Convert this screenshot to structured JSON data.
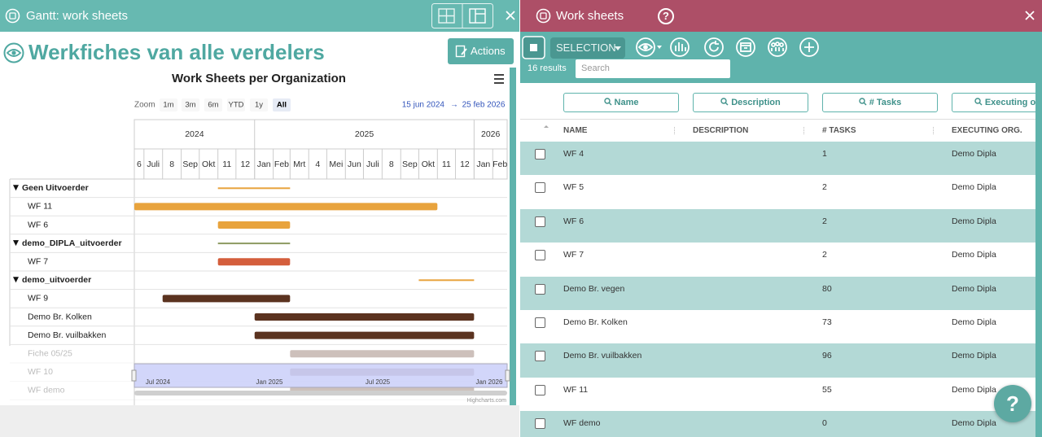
{
  "gantt_panel": {
    "title": "Gantt: work sheets",
    "heading": "Werkfiches van alle verdelers",
    "actions_button": "Actions"
  },
  "gantt": {
    "title": "Work Sheets per Organization",
    "zoom_label": "Zoom",
    "zoom_buttons": [
      "1m",
      "3m",
      "6m",
      "YTD",
      "1y",
      "All"
    ],
    "selected_zoom": 5,
    "range_from": "15 jun 2024",
    "range_separator": "→",
    "range_to": "25 feb 2026",
    "xlim": [
      "2024-06-15",
      "2026-02-25"
    ],
    "years": [
      "2024",
      "2025",
      "2026"
    ],
    "months": [
      "6",
      "Juli",
      "8",
      "Sep",
      "Okt",
      "11",
      "12",
      "Jan",
      "Feb",
      "Mrt",
      "4",
      "Mei",
      "Jun",
      "Juli",
      "8",
      "Sep",
      "Okt",
      "11",
      "12",
      "Jan",
      "Feb"
    ],
    "rows": [
      {
        "label": "Geen Uitvoerder",
        "group": true,
        "start": "2024-11",
        "end": "2025-03",
        "color": "#e8a33d"
      },
      {
        "label": "WF 11",
        "start": "2024-06",
        "end": "2025-11",
        "color": "#e8a33d"
      },
      {
        "label": "WF 6",
        "start": "2024-11",
        "end": "2025-03",
        "color": "#e8a33d"
      },
      {
        "label": "demo_DIPLA_uitvoerder",
        "group": true,
        "start": "2024-11",
        "end": "2025-03",
        "color": "#8d9a62"
      },
      {
        "label": "WF 7",
        "start": "2024-11",
        "end": "2025-03",
        "color": "#d45e3c"
      },
      {
        "label": "demo_uitvoerder",
        "group": true,
        "start": "2025-10",
        "end": "2026-01",
        "color": "#e8a33d"
      },
      {
        "label": "WF 9",
        "start": "2024-08",
        "end": "2025-03",
        "color": "#5b3320"
      },
      {
        "label": "Demo Br. Kolken",
        "start": "2025-01",
        "end": "2026-01",
        "color": "#5b3320"
      },
      {
        "label": "Demo Br. vuilbakken",
        "start": "2025-01",
        "end": "2026-01",
        "color": "#5b3320"
      },
      {
        "label": "Fiche 05/25",
        "start": "2025-03",
        "end": "2026-01",
        "color": "#5b3320",
        "faded": true
      },
      {
        "label": "WF 10",
        "start": "2025-03",
        "end": "2026-01",
        "color": "#5b3320",
        "faded": true
      },
      {
        "label": "WF demo",
        "start": "2025-03",
        "end": "2026-01",
        "color": "#5b3320",
        "faded": true
      }
    ],
    "navigator_labels": [
      "Jul 2024",
      "Jan 2025",
      "Jul 2025",
      "Jan 2026"
    ],
    "credits": "Highcharts.com"
  },
  "worksheets_panel": {
    "title": "Work sheets",
    "help": "?",
    "selection_button": "SELECTION",
    "result_count": "16 results",
    "search_placeholder": "Search",
    "filter_buttons": [
      "Name",
      "Description",
      "# Tasks",
      "Executing org"
    ],
    "columns": [
      "NAME",
      "DESCRIPTION",
      "# TASKS",
      "EXECUTING ORG."
    ],
    "rows": [
      {
        "name": "WF 4",
        "tasks": 1,
        "org": "Demo Dipla"
      },
      {
        "name": "WF 5",
        "tasks": 2,
        "org": "Demo Dipla"
      },
      {
        "name": "WF 6",
        "tasks": 2,
        "org": "Demo Dipla"
      },
      {
        "name": "WF 7",
        "tasks": 2,
        "org": "Demo Dipla"
      },
      {
        "name": "Demo Br. vegen",
        "tasks": 80,
        "org": "Demo Dipla"
      },
      {
        "name": "Demo Br. Kolken",
        "tasks": 73,
        "org": "Demo Dipla"
      },
      {
        "name": "Demo Br. vuilbakken",
        "tasks": 96,
        "org": "Demo Dipla"
      },
      {
        "name": "WF 11",
        "tasks": 55,
        "org": "Demo Dipla"
      },
      {
        "name": "WF demo",
        "tasks": 0,
        "org": "Demo Dipla"
      }
    ]
  }
}
